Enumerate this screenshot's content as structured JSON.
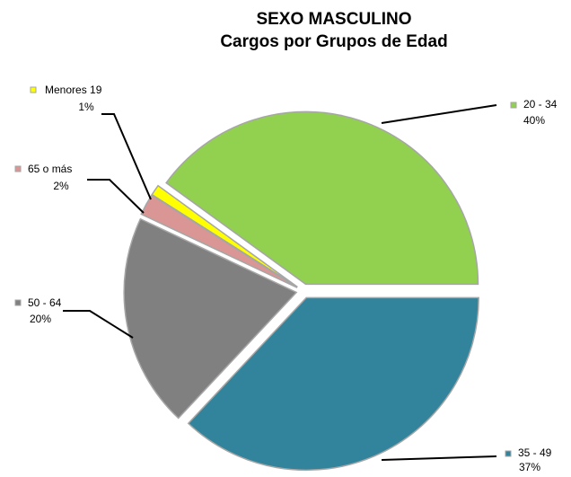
{
  "chart_data": {
    "type": "pie",
    "title": "SEXO MASCULINO",
    "subtitle": "Cargos por Grupos de Edad",
    "categories": [
      "20 - 34",
      "35 - 49",
      "50 - 64",
      "65 o más",
      "Menores 19"
    ],
    "values": [
      40,
      37,
      20,
      2,
      1
    ],
    "value_labels": [
      "40%",
      "37%",
      "20%",
      "2%",
      "1%"
    ],
    "colors": [
      "#92d050",
      "#31849b",
      "#808080",
      "#da9694",
      "#ffff00"
    ]
  }
}
